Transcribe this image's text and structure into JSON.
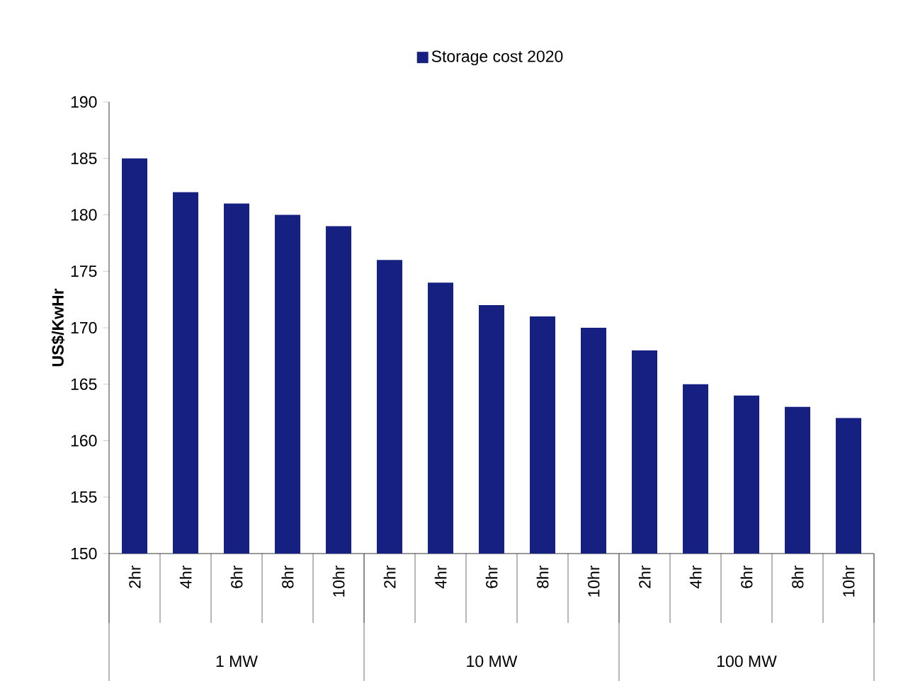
{
  "chart_data": {
    "type": "bar",
    "ylabel": "US$/KwHr",
    "categories": [
      "2hr",
      "4hr",
      "6hr",
      "8hr",
      "10hr",
      "2hr",
      "4hr",
      "6hr",
      "8hr",
      "10hr",
      "2hr",
      "4hr",
      "6hr",
      "8hr",
      "10hr"
    ],
    "series": [
      {
        "name": "Storage cost 2020",
        "color": "#152080",
        "values": [
          185,
          182,
          181,
          180,
          179,
          176,
          174,
          172,
          171,
          170,
          168,
          165,
          164,
          163,
          162
        ]
      }
    ],
    "ylim": [
      150,
      190
    ],
    "yticks": [
      150,
      155,
      160,
      165,
      170,
      175,
      180,
      185,
      190
    ],
    "legend": "top",
    "annotations": [
      "1 MW",
      "10 MW",
      "100 MW"
    ]
  }
}
